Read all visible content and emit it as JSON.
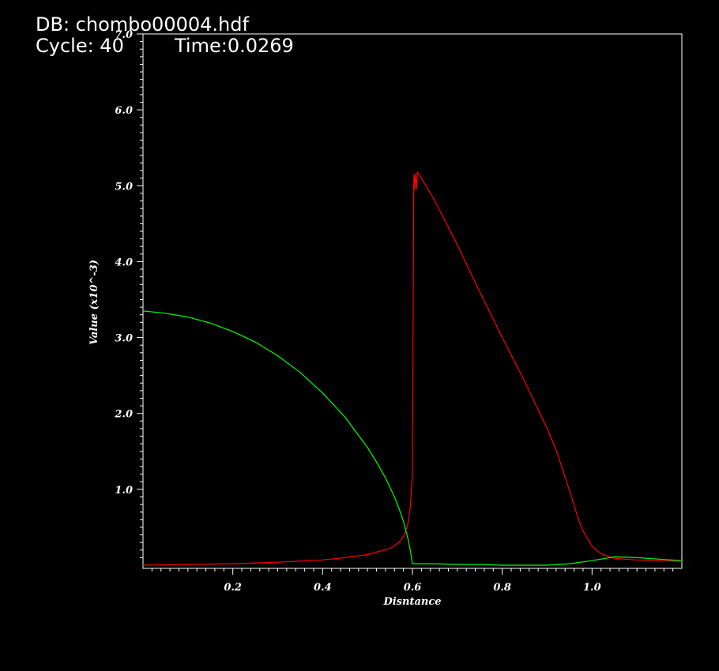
{
  "header": {
    "db_label": "DB: chombo00004.hdf",
    "cycle_label": "Cycle: 40",
    "time_label": "Time:0.0269"
  },
  "chart_data": {
    "type": "line",
    "xlabel": "Disntance",
    "ylabel": "Value (x10^-3)",
    "xlim": [
      0.0,
      1.2
    ],
    "ylim": [
      0.0,
      7.0
    ],
    "xticks": [
      0.2,
      0.4,
      0.6,
      0.8,
      1.0
    ],
    "xtick_labels": [
      "0.2",
      "0.4",
      "0.6",
      "0.8",
      "1.0"
    ],
    "yticks": [
      1.0,
      2.0,
      3.0,
      4.0,
      5.0,
      6.0
    ],
    "ytick_labels": [
      "1.0",
      "2.0",
      "3.0",
      "4.0",
      "5.0",
      "6.0"
    ],
    "ytop_label": "7.0",
    "grid": false,
    "series": [
      {
        "color": "#ff0000",
        "x": [
          0.0,
          0.1,
          0.2,
          0.3,
          0.4,
          0.45,
          0.5,
          0.55,
          0.57,
          0.58,
          0.585,
          0.59,
          0.595,
          0.6,
          0.603,
          0.604,
          0.605,
          0.607,
          0.609,
          0.611,
          0.62,
          0.65,
          0.7,
          0.75,
          0.8,
          0.85,
          0.9,
          0.92,
          0.95,
          0.97,
          0.98,
          1.0,
          1.02,
          1.05,
          1.1,
          1.15,
          1.2
        ],
        "values": [
          0.0,
          0.01,
          0.02,
          0.04,
          0.07,
          0.1,
          0.14,
          0.22,
          0.3,
          0.38,
          0.45,
          0.55,
          0.75,
          1.2,
          5.08,
          5.15,
          4.95,
          5.15,
          4.95,
          5.18,
          5.1,
          4.8,
          4.22,
          3.6,
          3.0,
          2.42,
          1.8,
          1.52,
          0.98,
          0.6,
          0.45,
          0.25,
          0.15,
          0.09,
          0.07,
          0.06,
          0.05
        ]
      },
      {
        "color": "#00ff00",
        "x": [
          0.0,
          0.05,
          0.1,
          0.15,
          0.2,
          0.25,
          0.3,
          0.35,
          0.4,
          0.45,
          0.5,
          0.52,
          0.54,
          0.56,
          0.57,
          0.58,
          0.59,
          0.595,
          0.6,
          0.605,
          0.65,
          0.7,
          0.75,
          0.8,
          0.85,
          0.9,
          0.95,
          1.0,
          1.05,
          1.1,
          1.15,
          1.2
        ],
        "values": [
          3.35,
          3.32,
          3.27,
          3.19,
          3.08,
          2.94,
          2.76,
          2.54,
          2.27,
          1.95,
          1.55,
          1.36,
          1.15,
          0.9,
          0.75,
          0.58,
          0.35,
          0.2,
          0.02,
          0.02,
          0.02,
          0.01,
          0.01,
          0.0,
          0.0,
          0.0,
          0.02,
          0.06,
          0.11,
          0.1,
          0.08,
          0.06
        ]
      }
    ]
  }
}
